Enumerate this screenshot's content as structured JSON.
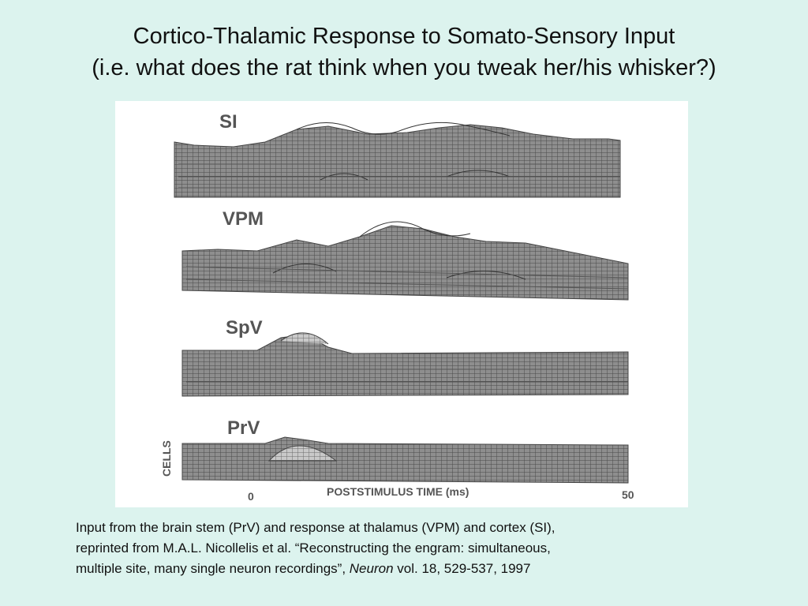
{
  "title": {
    "line1": "Cortico-Thalamic Response to Somato-Sensory Input",
    "line2": "(i.e. what does the rat think when you tweak her/his whisker?)"
  },
  "figure": {
    "panels": [
      {
        "label": "SI"
      },
      {
        "label": "VPM"
      },
      {
        "label": "SpV"
      },
      {
        "label": "PrV"
      }
    ],
    "y_axis_label": "CELLS",
    "x_axis_label": "POSTSTIMULUS TIME (ms)",
    "x_tick_start": "0",
    "x_tick_end": "50"
  },
  "caption": {
    "line1": "Input from the brain stem (PrV) and response at thalamus (VPM) and cortex (SI),",
    "line2": "reprinted from M.A.L. Nicollelis et al. “Reconstructing the engram: simultaneous,",
    "line3_text": "multiple site, many single neuron recordings”, ",
    "journal": "Neuron",
    "citation": " vol. 18, 529-537, 1997"
  }
}
